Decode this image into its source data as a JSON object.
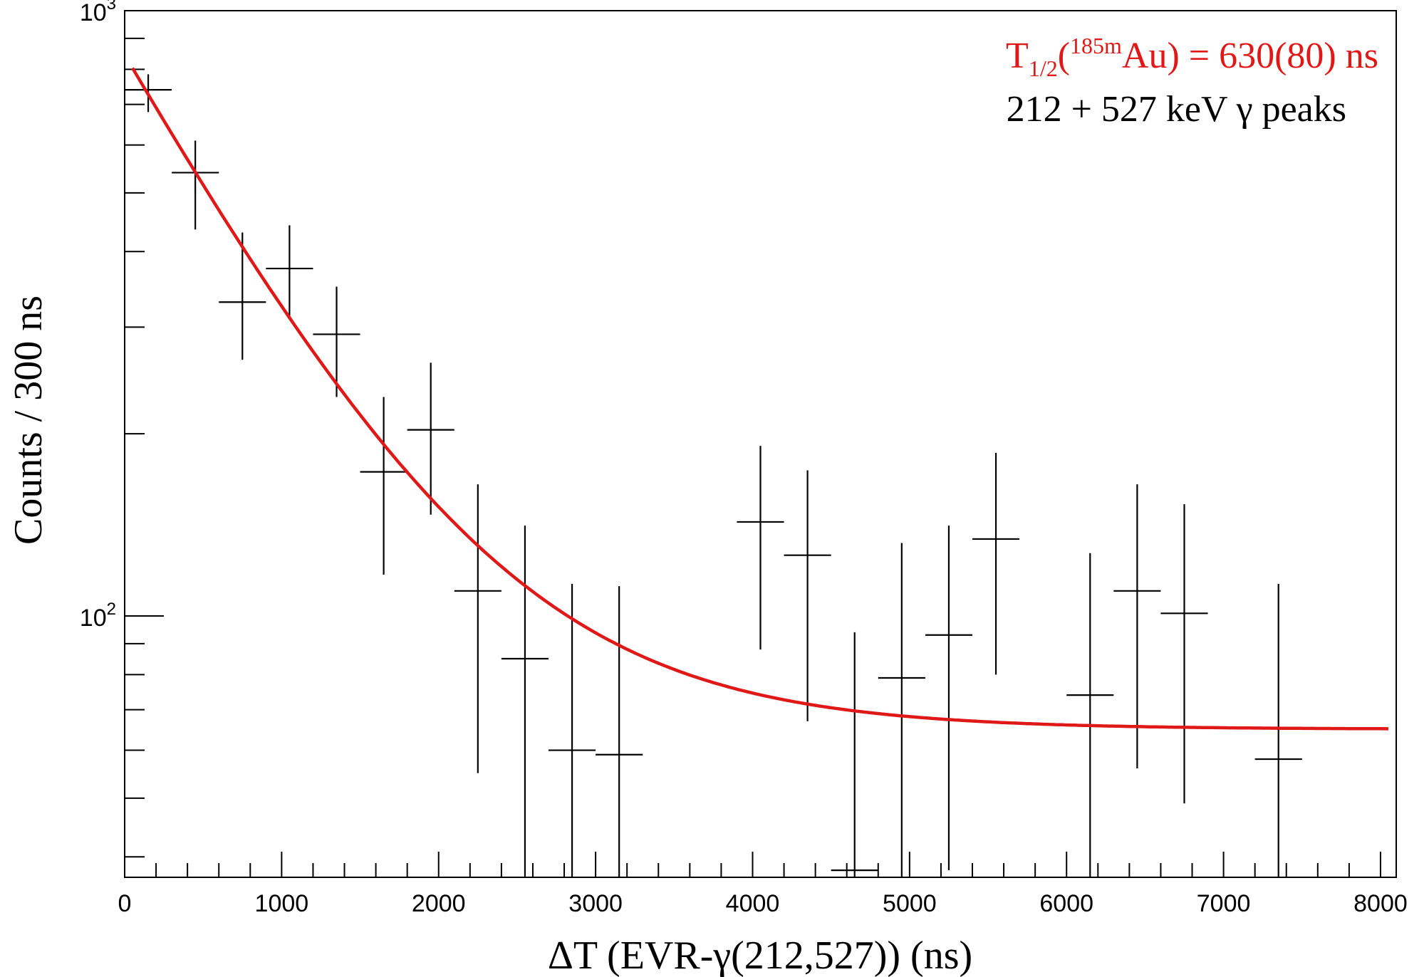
{
  "chart_data": {
    "type": "scatter",
    "xlabel": "ΔT (EVR-γ(212,527)) (ns)",
    "ylabel": "Counts / 300 ns",
    "xlim": [
      0,
      8100
    ],
    "ylim": [
      37,
      1000
    ],
    "y_scale": "log",
    "x_ticks": [
      0,
      1000,
      2000,
      3000,
      4000,
      5000,
      6000,
      7000,
      8000
    ],
    "x_tick_labels": [
      "0",
      "1000",
      "2000",
      "3000",
      "4000",
      "5000",
      "6000",
      "7000",
      "8000"
    ],
    "y_tick_labels": [
      {
        "value": 100,
        "base": "10",
        "exp": "2"
      },
      {
        "value": 1000,
        "base": "10",
        "exp": "3"
      }
    ],
    "bin_width": 300,
    "grid": false,
    "series": [
      {
        "kind": "data_with_errors",
        "color": "#000000",
        "points": [
          {
            "x": 150,
            "y": 740,
            "err_lo": 60,
            "err_hi": 45
          },
          {
            "x": 450,
            "y": 540,
            "err_lo": 105,
            "err_hi": 70
          },
          {
            "x": 750,
            "y": 330,
            "err_lo": 65,
            "err_hi": 100
          },
          {
            "x": 1050,
            "y": 375,
            "err_lo": 63,
            "err_hi": 67
          },
          {
            "x": 1350,
            "y": 292,
            "err_lo": 62,
            "err_hi": 58
          },
          {
            "x": 1650,
            "y": 173,
            "err_lo": 56,
            "err_hi": 57
          },
          {
            "x": 1950,
            "y": 203,
            "err_lo": 56,
            "err_hi": 59
          },
          {
            "x": 2250,
            "y": 110,
            "err_lo": 55,
            "err_hi": 55
          },
          {
            "x": 2550,
            "y": 85,
            "err_lo": 48,
            "err_hi": 56
          },
          {
            "x": 2850,
            "y": 60,
            "err_lo": 23,
            "err_hi": 53
          },
          {
            "x": 3150,
            "y": 59,
            "err_lo": 22,
            "err_hi": 53
          },
          {
            "x": 4050,
            "y": 143,
            "err_lo": 55,
            "err_hi": 48
          },
          {
            "x": 4350,
            "y": 126,
            "err_lo": 59,
            "err_hi": 48
          },
          {
            "x": 4650,
            "y": 38,
            "err_lo": 1,
            "err_hi": 56
          },
          {
            "x": 4950,
            "y": 79,
            "err_lo": 42,
            "err_hi": 53
          },
          {
            "x": 5250,
            "y": 93,
            "err_lo": 55,
            "err_hi": 48
          },
          {
            "x": 5550,
            "y": 134,
            "err_lo": 54,
            "err_hi": 52
          },
          {
            "x": 6150,
            "y": 74,
            "err_lo": 37,
            "err_hi": 53
          },
          {
            "x": 6450,
            "y": 110,
            "err_lo": 54,
            "err_hi": 55
          },
          {
            "x": 6750,
            "y": 101,
            "err_lo": 52,
            "err_hi": 52
          },
          {
            "x": 7350,
            "y": 58,
            "err_lo": 21,
            "err_hi": 55
          }
        ]
      },
      {
        "kind": "fit_curve",
        "color": "#e01818",
        "model": "exponential_decay_plus_constant",
        "amplitude": 739,
        "half_life": 630,
        "constant": 65,
        "x_range": [
          50,
          8050
        ]
      }
    ],
    "annotations": [
      {
        "color": "#e01818",
        "main": "T",
        "sub": "1/2",
        "sup": "185m",
        "rest": "(",
        "after": "Au) = 630(80) ns"
      },
      {
        "color": "#000000",
        "text": "212 + 527 keV γ peaks"
      }
    ]
  }
}
